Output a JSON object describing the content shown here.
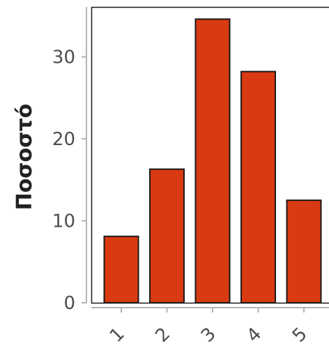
{
  "chart_data": {
    "type": "bar",
    "categories": [
      "1",
      "2",
      "3",
      "4",
      "5"
    ],
    "values": [
      8.1,
      16.3,
      34.6,
      28.2,
      12.5
    ],
    "xlabel": "",
    "ylabel": "Ποσοστό",
    "ylim": [
      0,
      36
    ],
    "yticks": [
      0,
      10,
      20,
      30
    ],
    "bar_color": "#d93a12",
    "bar_outline": "#1a1a1a",
    "grid": false,
    "x_tick_rotation": "45"
  }
}
